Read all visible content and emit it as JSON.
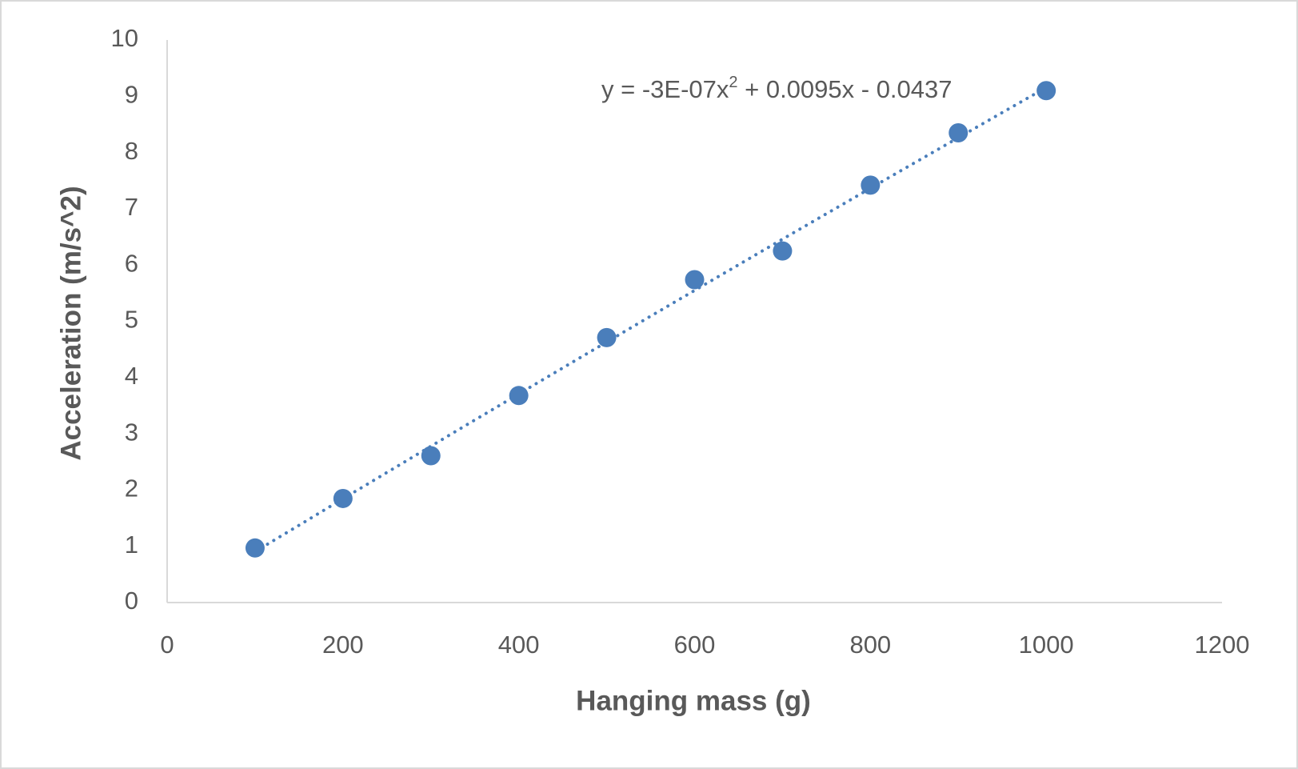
{
  "chart_data": {
    "type": "scatter",
    "x_label": "Hanging mass (g)",
    "y_label": "Acceleration (m/s^2)",
    "series": [
      {
        "color": "#4a7ebb",
        "x": [
          100,
          200,
          300,
          400,
          500,
          600,
          700,
          800,
          900,
          1000
        ],
        "values": [
          0.97,
          1.85,
          2.61,
          3.68,
          4.71,
          5.74,
          6.25,
          7.42,
          8.35,
          9.1
        ]
      }
    ],
    "trendline": {
      "coefficients": [
        -3e-07,
        0.0095,
        -0.0437
      ],
      "label_parts": [
        "y = -3E-07x",
        "2",
        " + 0.0095x - 0.0437"
      ]
    },
    "xlim": [
      0,
      1200
    ],
    "xticks": [
      0,
      200,
      400,
      600,
      800,
      1000,
      1200
    ],
    "ylim": [
      0,
      10
    ],
    "yticks": [
      0,
      1,
      2,
      3,
      4,
      5,
      6,
      7,
      8,
      9,
      10
    ],
    "grid": false
  }
}
